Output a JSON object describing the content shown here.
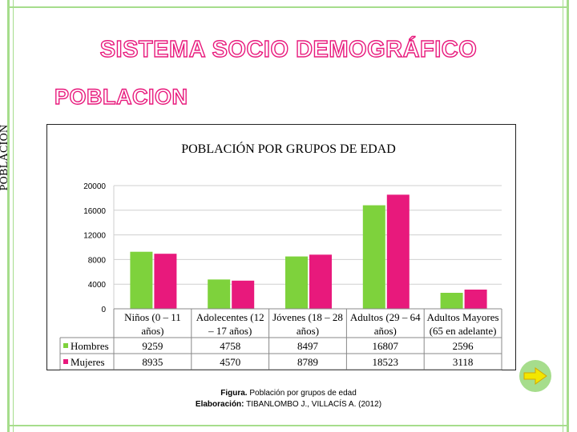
{
  "slide": {
    "title": "SISTEMA SOCIO DEMOGRÁFICO",
    "subtitle": "POBLACION"
  },
  "chart_data": {
    "type": "bar",
    "title": "POBLACIÓN POR GRUPOS DE EDAD",
    "ylabel": "POBLACIÓN",
    "xlabel": "",
    "ylim": [
      0,
      20000
    ],
    "yticks": [
      0,
      4000,
      8000,
      12000,
      16000,
      20000
    ],
    "grid": true,
    "categories": [
      [
        "Niños (0 – 11",
        "años)"
      ],
      [
        "Adolecentes (12",
        "– 17 años)"
      ],
      [
        "Jóvenes (18 – 28",
        "años)"
      ],
      [
        "Adultos (29 – 64",
        "años)"
      ],
      [
        "Adultos Mayores",
        "(65 en adelante)"
      ]
    ],
    "series": [
      {
        "name": "Hombres",
        "color": "#7ed23c",
        "values": [
          9259,
          4758,
          8497,
          16807,
          2596
        ],
        "labels": [
          "9259",
          "4758",
          "8497",
          "16807",
          "2596"
        ]
      },
      {
        "name": "Mujeres",
        "color": "#e8197c",
        "values": [
          8935,
          4570,
          8789,
          18523,
          3118
        ],
        "labels": [
          "8935",
          "4570",
          "8789",
          "18523",
          "3118"
        ]
      }
    ],
    "data_table": true
  },
  "caption": {
    "figure_prefix": "Figura.",
    "figure_text": " Población por grupos de edad",
    "credit_prefix": "Elaboración:",
    "credit_text": " TIBANLOMBO J., VILLACÍS A. (2012)"
  },
  "nav": {
    "next_icon": "right-arrow-icon",
    "next_color": "#f2e600"
  },
  "colors": {
    "accent": "#e8197c",
    "frame": "#a6dd8c"
  }
}
